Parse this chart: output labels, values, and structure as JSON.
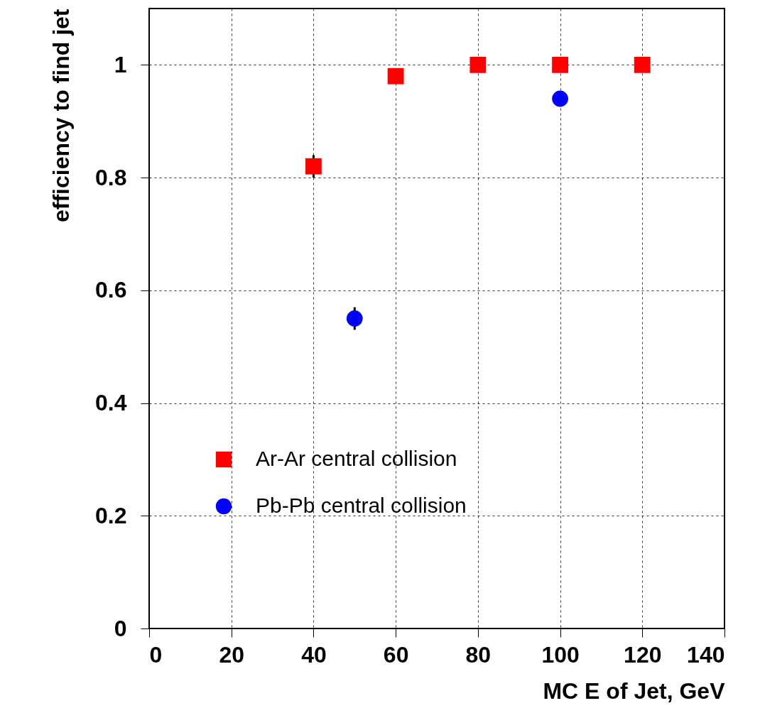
{
  "chart_data": {
    "type": "scatter",
    "xlabel": "MC E  of Jet, GeV",
    "ylabel": "efficiency to find jet",
    "xlim": [
      0,
      140
    ],
    "xticks": [
      0,
      20,
      40,
      60,
      80,
      100,
      120,
      140
    ],
    "ylim": [
      0,
      1.1
    ],
    "yticks": [
      0,
      0.2,
      0.4,
      0.6,
      0.8,
      1
    ],
    "grid": true,
    "legend": "bottom left",
    "series": [
      {
        "name": "Ar-Ar central collision",
        "color": "#ff0000",
        "marker": "square",
        "x": [
          40,
          60,
          80,
          100,
          120
        ],
        "values": [
          0.82,
          0.98,
          1.0,
          1.0,
          1.0
        ],
        "errors": [
          0.02,
          null,
          null,
          null,
          null
        ]
      },
      {
        "name": "Pb-Pb central collision",
        "color": "#0000ff",
        "marker": "circle",
        "x": [
          50,
          100
        ],
        "values": [
          0.55,
          0.94
        ],
        "errors": [
          0.02,
          null
        ]
      }
    ]
  }
}
